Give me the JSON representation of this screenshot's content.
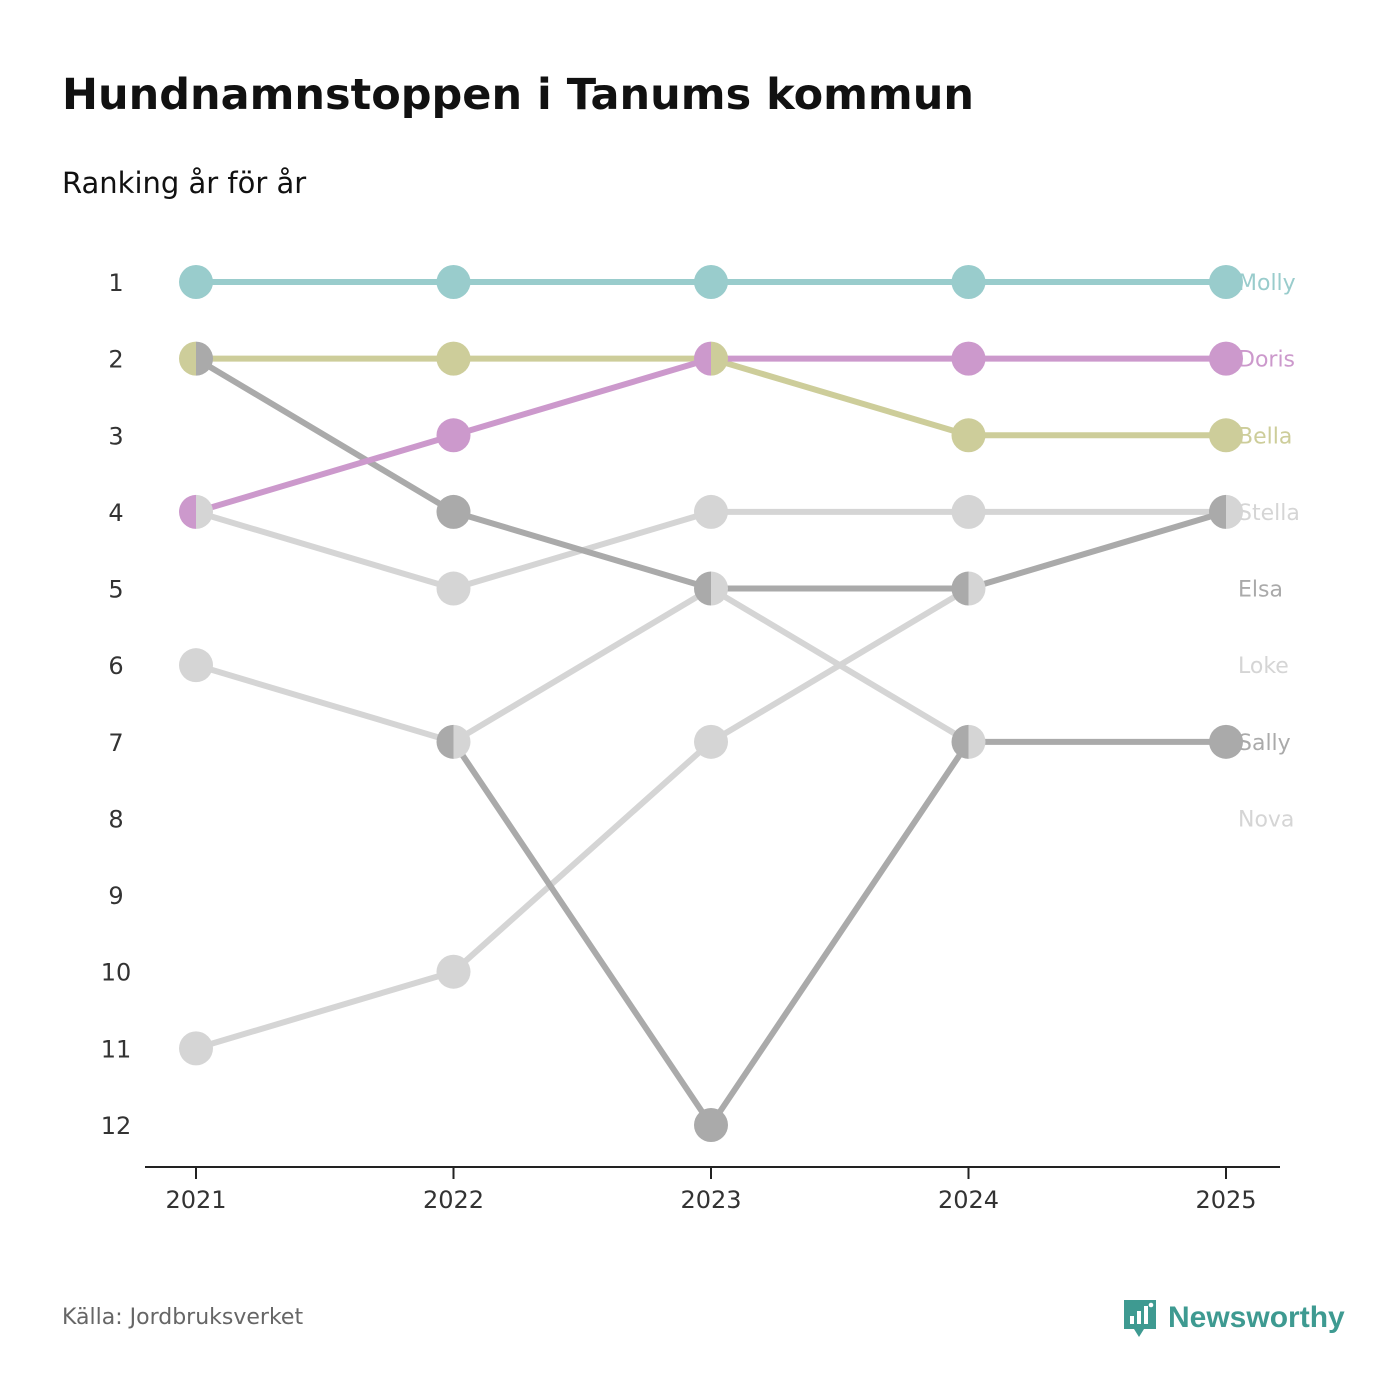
{
  "title": "Hundnamnstoppen i Tanums kommun",
  "subtitle": "Ranking år för år",
  "source": "Källa: Jordbruksverket",
  "brand": {
    "name": "Newsworthy",
    "icon": "newsworthy-logo-icon",
    "color": "#3e9a91"
  },
  "chart_data": {
    "type": "line",
    "title": "Hundnamnstoppen i Tanums kommun",
    "subtitle": "Ranking år för år",
    "xlabel": "",
    "ylabel": "",
    "x": [
      "2021",
      "2022",
      "2023",
      "2024",
      "2025"
    ],
    "y_ticks": [
      "1",
      "2",
      "3",
      "4",
      "5",
      "6",
      "7",
      "8",
      "9",
      "10",
      "11",
      "12"
    ],
    "ylim": [
      1,
      12
    ],
    "y_inverted": true,
    "grid": false,
    "series": [
      {
        "name": "Nova",
        "color": "#d5d5d5",
        "values": [
          11,
          10,
          7,
          5,
          null
        ]
      },
      {
        "name": "Loke",
        "color": "#d5d5d5",
        "values": [
          6,
          7,
          5,
          7,
          null
        ]
      },
      {
        "name": "Stella",
        "color": "#d5d5d5",
        "values": [
          4,
          5,
          4,
          4,
          4
        ]
      },
      {
        "name": "Sally",
        "color": "#aaaaaa",
        "values": [
          null,
          7,
          12,
          7,
          7
        ]
      },
      {
        "name": "Elsa",
        "color": "#aaaaaa",
        "values": [
          2,
          4,
          5,
          5,
          4
        ]
      },
      {
        "name": "Bella",
        "color": "#cdcd9a",
        "values": [
          2,
          2,
          2,
          3,
          3
        ]
      },
      {
        "name": "Doris",
        "color": "#cc99cc",
        "values": [
          4,
          3,
          2,
          2,
          2
        ]
      },
      {
        "name": "Molly",
        "color": "#99cccc",
        "values": [
          1,
          1,
          1,
          1,
          1
        ]
      }
    ],
    "label_order": [
      "Molly",
      "Doris",
      "Bella",
      "Stella",
      "Elsa",
      "Loke",
      "Sally",
      "Nova"
    ],
    "overlap_marker_color": "#6e6e73"
  }
}
